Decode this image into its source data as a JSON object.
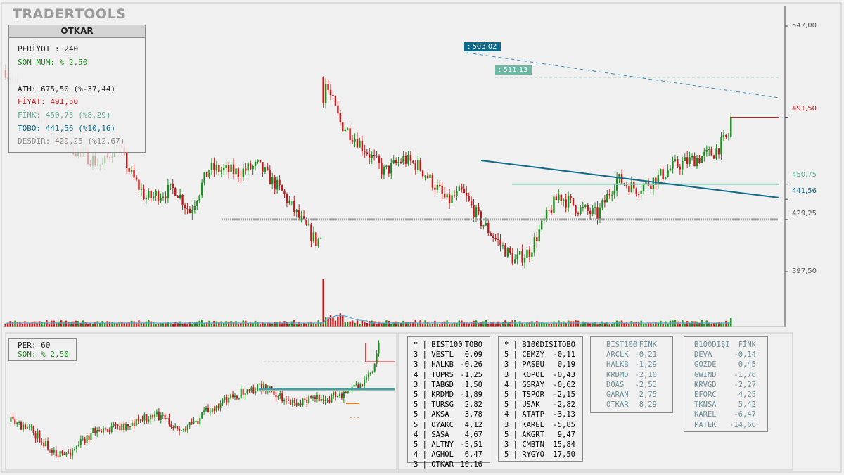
{
  "brand": "TRADERTOOLS",
  "symbol": "OTKAR",
  "info": {
    "period": "PERİYOT : 240",
    "last_candle": "SON MUM: % 2,50",
    "ath": "ATH: 675,50 (%-37,44)",
    "price": "FİYAT: 491,50",
    "fink": "FİNK: 450,75 (%8,29)",
    "tobo": "TOBO: 441,56 (%10,16)",
    "desdir": "DESDİR: 429,25 (%12,67)"
  },
  "tags": {
    "upper": ": 503,02",
    "lower": ": 511,13"
  },
  "price_axis": {
    "ticks": [
      "547,00",
      "491,50",
      "450,75",
      "441,56",
      "429,25",
      "397,50"
    ]
  },
  "mini": {
    "per": "PER: 60",
    "son": "SON: % 2,50"
  },
  "colors": {
    "up": "#1e8c1e",
    "down": "#c41818",
    "tobo_line": "#0e6a8a",
    "fink_line": "#8ec9b8",
    "desdir_line": "#9e9e9e",
    "price_line": "#c41818",
    "tag_blue": "#0e6a8a",
    "tag_teal": "#6db8a4",
    "volume_ma": "#5aaad8"
  },
  "table_bist100": {
    "header": [
      "*  | BIST100",
      "TOBO"
    ],
    "rows": [
      [
        "3 | VESTL",
        "0,09"
      ],
      [
        "3 | HALKB",
        "-0,26"
      ],
      [
        "4 | TUPRS",
        "-1,25"
      ],
      [
        "3 | TABGD",
        "1,50"
      ],
      [
        "5 | KRDMD",
        "-1,89"
      ],
      [
        "5 | TURSG",
        "2,82"
      ],
      [
        "5 | AKSA",
        "3,78"
      ],
      [
        "5 | OYAKC",
        "4,12"
      ],
      [
        "4 | SASA",
        "4,67"
      ],
      [
        "5 | ALTNY",
        "-5,51"
      ],
      [
        "4 | AGHOL",
        "6,47"
      ],
      [
        "3 | OTKAR",
        "10,16"
      ]
    ]
  },
  "table_b100disi": {
    "header": [
      "*  | B100DIŞI",
      "TOBO"
    ],
    "rows": [
      [
        "5 | CEMZY",
        "-0,11"
      ],
      [
        "3 | PASEU",
        "0,19"
      ],
      [
        "3 | KOPOL",
        "-0,43"
      ],
      [
        "4 | GSRAY",
        "-0,62"
      ],
      [
        "5 | TSPOR",
        "-2,15"
      ],
      [
        "5 | USAK",
        "-2,82"
      ],
      [
        "4 | ATATP",
        "-3,13"
      ],
      [
        "3 | KAREL",
        "-5,85"
      ],
      [
        "5 | AKGRT",
        "9,47"
      ],
      [
        "3 | CMBTN",
        "15,84"
      ],
      [
        "5 | RYGYO",
        "17,50"
      ]
    ]
  },
  "table_bist100_fink": {
    "header": [
      "BIST100",
      "FİNK"
    ],
    "rows": [
      [
        "ARCLK",
        "-0,21"
      ],
      [
        "HALKB",
        "-1,29"
      ],
      [
        "KRDMD",
        "-2,10"
      ],
      [
        "DOAS",
        "-2,53"
      ],
      [
        "GARAN",
        "2,75"
      ],
      [
        "OTKAR",
        "8,29"
      ]
    ]
  },
  "table_b100disi_fink": {
    "header": [
      "B100DIŞI",
      "FİNK"
    ],
    "rows": [
      [
        "DEVA",
        "-0,14"
      ],
      [
        "GOZDE",
        "0,45"
      ],
      [
        "GWIND",
        "-1,76"
      ],
      [
        "KRVGD",
        "-2,27"
      ],
      [
        "EFORC",
        "4,25"
      ],
      [
        "TKNSA",
        "5,42"
      ],
      [
        "KAREL",
        "-6,47"
      ],
      [
        "PATEK",
        "-14,66"
      ]
    ]
  },
  "chart_data": {
    "type": "candlestick",
    "title": "OTKAR",
    "price_range": [
      380,
      560
    ],
    "levels": {
      "ath": 675.5,
      "price": 491.5,
      "fink": 450.75,
      "tobo": 441.56,
      "desdir": 429.25,
      "projection_upper": 503.02,
      "projection_lower": 511.13
    },
    "anchors": [
      [
        0,
        520
      ],
      [
        20,
        480
      ],
      [
        40,
        462
      ],
      [
        46,
        476
      ],
      [
        52,
        456
      ],
      [
        58,
        442
      ],
      [
        70,
        448
      ],
      [
        76,
        434
      ],
      [
        84,
        460
      ],
      [
        96,
        458
      ],
      [
        104,
        462
      ],
      [
        114,
        446
      ],
      [
        122,
        428
      ],
      [
        128,
        416
      ],
      [
        130,
        418
      ],
      [
        131,
        516
      ],
      [
        138,
        488
      ],
      [
        146,
        476
      ],
      [
        156,
        458
      ],
      [
        164,
        466
      ],
      [
        170,
        462
      ],
      [
        176,
        452
      ],
      [
        182,
        440
      ],
      [
        188,
        446
      ],
      [
        196,
        428
      ],
      [
        204,
        414
      ],
      [
        210,
        404
      ],
      [
        216,
        410
      ],
      [
        222,
        428
      ],
      [
        228,
        444
      ],
      [
        236,
        436
      ],
      [
        244,
        432
      ],
      [
        252,
        454
      ],
      [
        260,
        448
      ],
      [
        268,
        454
      ],
      [
        276,
        462
      ],
      [
        284,
        466
      ],
      [
        292,
        470
      ],
      [
        298,
        480
      ],
      [
        299,
        492
      ]
    ],
    "volume_spike_index": 131
  }
}
